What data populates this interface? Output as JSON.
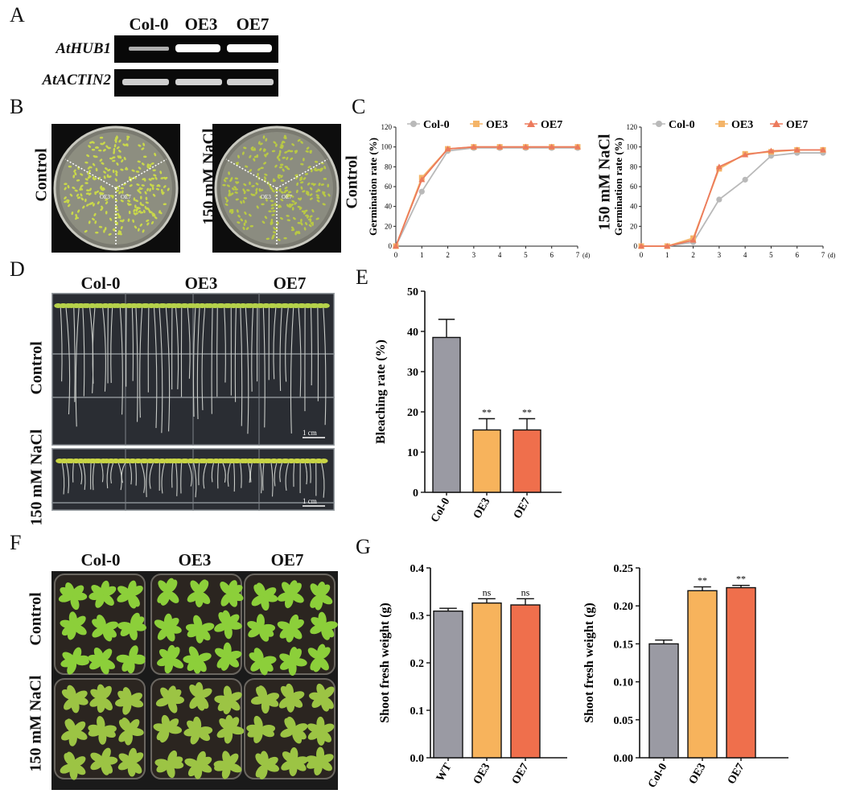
{
  "panels": {
    "A": "A",
    "B": "B",
    "C": "C",
    "D": "D",
    "E": "E",
    "F": "F",
    "G": "G"
  },
  "panelA": {
    "lanes": [
      "Col-0",
      "OE3",
      "OE7"
    ],
    "genes": [
      "AtHUB1",
      "AtACTIN2"
    ]
  },
  "panelB": {
    "rows": [
      "Control",
      "150 mM NaCl"
    ],
    "plate_labels": [
      "OE3",
      "OE7"
    ]
  },
  "panelD": {
    "columns": [
      "Col-0",
      "OE3",
      "OE7"
    ],
    "rows": [
      "Control",
      "150 mM NaCl"
    ],
    "scale_bar": "1 cm"
  },
  "panelF": {
    "columns": [
      "Col-0",
      "OE3",
      "OE7"
    ],
    "rows": [
      "Control",
      "150 mM NaCl"
    ]
  },
  "colors": {
    "col0": "#9a9aa3",
    "oe3": "#f7b35c",
    "oe7": "#ef6f4c",
    "line_col0": "#b9b9b9",
    "line_oe3": "#f4b467",
    "line_oe7": "#ec7a5c"
  },
  "chart_data": [
    {
      "id": "C-control",
      "type": "line",
      "ylabel": "Germination rate (%)",
      "row_label": "Control",
      "x": [
        0,
        1,
        2,
        3,
        4,
        5,
        6,
        7
      ],
      "x_unit": "(d)",
      "ylim": [
        0,
        120
      ],
      "yticks": [
        0,
        20,
        40,
        60,
        80,
        100,
        120
      ],
      "legend": [
        "Col-0",
        "OE3",
        "OE7"
      ],
      "series": [
        {
          "name": "Col-0",
          "marker": "circle",
          "values": [
            0,
            55,
            96,
            99,
            99,
            99,
            99,
            99
          ]
        },
        {
          "name": "OE3",
          "marker": "square",
          "values": [
            0,
            69,
            98,
            100,
            100,
            100,
            100,
            100
          ]
        },
        {
          "name": "OE7",
          "marker": "triangle",
          "values": [
            0,
            67,
            98,
            100,
            100,
            100,
            100,
            100
          ]
        }
      ]
    },
    {
      "id": "C-nacl",
      "type": "line",
      "ylabel": "Germination rate (%)",
      "row_label": "150 mM NaCl",
      "x": [
        0,
        1,
        2,
        3,
        4,
        5,
        6,
        7
      ],
      "x_unit": "(d)",
      "ylim": [
        0,
        120
      ],
      "yticks": [
        0,
        20,
        40,
        60,
        80,
        100,
        120
      ],
      "legend": [
        "Col-0",
        "OE3",
        "OE7"
      ],
      "series": [
        {
          "name": "Col-0",
          "marker": "circle",
          "values": [
            0,
            0,
            4,
            47,
            67,
            91,
            94,
            94
          ]
        },
        {
          "name": "OE3",
          "marker": "square",
          "values": [
            0,
            0,
            8,
            78,
            93,
            95,
            97,
            97
          ]
        },
        {
          "name": "OE7",
          "marker": "triangle",
          "values": [
            0,
            0,
            6,
            80,
            92,
            96,
            97,
            97
          ]
        }
      ]
    },
    {
      "id": "E",
      "type": "bar",
      "ylabel": "Bleaching rate (%)",
      "categories": [
        "Col-0",
        "OE3",
        "OE7"
      ],
      "values": [
        38.5,
        15.5,
        15.5
      ],
      "errors": [
        4.5,
        2.8,
        2.8
      ],
      "sig": [
        "",
        "**",
        "**"
      ],
      "ylim": [
        0,
        50
      ],
      "yticks": [
        0,
        10,
        20,
        30,
        40,
        50
      ]
    },
    {
      "id": "G-control",
      "type": "bar",
      "ylabel": "Shoot fresh weight (g)",
      "categories": [
        "WT",
        "OE3",
        "OE7"
      ],
      "values": [
        0.309,
        0.326,
        0.322
      ],
      "errors": [
        0.006,
        0.009,
        0.013
      ],
      "sig": [
        "",
        "ns",
        "ns"
      ],
      "ylim": [
        0,
        0.4
      ],
      "yticks": [
        "0.0",
        "0.1",
        "0.2",
        "0.3",
        "0.4"
      ]
    },
    {
      "id": "G-nacl",
      "type": "bar",
      "ylabel": "Shoot fresh weight (g)",
      "categories": [
        "Col-0",
        "OE3",
        "OE7"
      ],
      "values": [
        0.15,
        0.22,
        0.224
      ],
      "errors": [
        0.005,
        0.005,
        0.003
      ],
      "sig": [
        "",
        "**",
        "**"
      ],
      "ylim": [
        0,
        0.25
      ],
      "yticks": [
        "0.00",
        "0.05",
        "0.10",
        "0.15",
        "0.20",
        "0.25"
      ]
    }
  ]
}
